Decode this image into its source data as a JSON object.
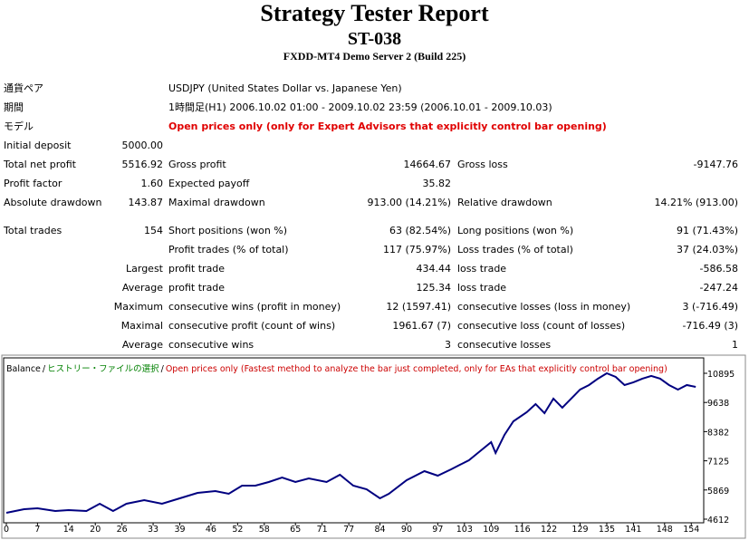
{
  "header": {
    "title": "Strategy Tester Report",
    "subtitle": "ST-038",
    "server": "FXDD-MT4 Demo Server 2 (Build 225)"
  },
  "info": [
    {
      "label": "通貨ペア",
      "value": "USDJPY (United States Dollar vs. Japanese Yen)"
    },
    {
      "label": "期間",
      "value": "1時間足(H1) 2006.10.02 01:00 - 2009.10.02 23:59 (2006.10.01 - 2009.10.03)"
    },
    {
      "label": "モデル",
      "value": "Open prices only (only for Expert Advisors that explicitly control bar opening)"
    }
  ],
  "stats": [
    [
      {
        "label": "Initial deposit",
        "value": "5000.00"
      },
      {
        "label": "Total net profit",
        "value": "5516.92",
        "label2": "Gross profit",
        "value2": "14664.67",
        "label3": "Gross loss",
        "value3": "-9147.76"
      },
      {
        "label": "Profit factor",
        "value": "1.60",
        "label2": "Expected payoff",
        "value2": "35.82"
      },
      {
        "label": "Absolute drawdown",
        "value": "143.87",
        "label2": "Maximal drawdown",
        "value2": "913.00 (14.21%)",
        "label3": "Relative drawdown",
        "value3": "14.21% (913.00)"
      }
    ],
    [
      {
        "label": "Total trades",
        "value": "154",
        "label2": "Short positions (won %)",
        "value2": "63 (82.54%)",
        "label3": "Long positions (won %)",
        "value3": "91 (71.43%)"
      },
      {
        "label2": "Profit trades (% of total)",
        "value2": "117 (75.97%)",
        "label3": "Loss trades (% of total)",
        "value3": "37 (24.03%)"
      },
      {
        "value": "Largest",
        "label2": "profit trade",
        "value2": "434.44",
        "label3": "loss trade",
        "value3": "-586.58"
      },
      {
        "value": "Average",
        "label2": "profit trade",
        "value2": "125.34",
        "label3": "loss trade",
        "value3": "-247.24"
      },
      {
        "value": "Maximum",
        "label2": "consecutive wins (profit in money)",
        "value2": "12 (1597.41)",
        "label3": "consecutive losses (loss in money)",
        "value3": "3 (-716.49)"
      },
      {
        "value": "Maximal",
        "label2": "consecutive profit (count of wins)",
        "value2": "1961.67 (7)",
        "label3": "consecutive loss (count of losses)",
        "value3": "-716.49 (3)"
      },
      {
        "value": "Average",
        "label2": "consecutive wins",
        "value2": "3",
        "label3": "consecutive losses",
        "value3": "1"
      }
    ]
  ],
  "chart_data": {
    "type": "line",
    "legend_separator": "/",
    "legend_notes": [
      {
        "text": "ヒストリー・ファイルの選択",
        "color": "#008000"
      },
      {
        "text": "Open prices only (Fastest method to analyze the bar just completed, only for EAs that explicitly control bar opening)",
        "color": "#cc0000"
      }
    ],
    "x": [
      0,
      4,
      7,
      11,
      14,
      18,
      21,
      24,
      27,
      31,
      35,
      39,
      43,
      47,
      50,
      53,
      56,
      59,
      62,
      65,
      68,
      72,
      75,
      78,
      81,
      84,
      86,
      90,
      94,
      97,
      100,
      104,
      106,
      109,
      110,
      112,
      114,
      117,
      119,
      121,
      123,
      125,
      127,
      129,
      131,
      133,
      135,
      137,
      139,
      141,
      143,
      145,
      147,
      149,
      151,
      153,
      155
    ],
    "series": [
      {
        "name": "Balance",
        "color": "#000080",
        "values": [
          4885,
          5041,
          5080,
          4963,
          5002,
          4963,
          5276,
          4963,
          5276,
          5432,
          5276,
          5510,
          5744,
          5822,
          5705,
          6056,
          6056,
          6212,
          6407,
          6212,
          6368,
          6212,
          6524,
          6056,
          5900,
          5510,
          5705,
          6290,
          6680,
          6485,
          6759,
          7149,
          7461,
          7930,
          7461,
          8242,
          8827,
          9218,
          9569,
          9179,
          9803,
          9413,
          9803,
          10193,
          10388,
          10662,
          10896,
          10740,
          10388,
          10505,
          10662,
          10779,
          10662,
          10388,
          10193,
          10388,
          10310
        ]
      }
    ],
    "xlim": [
      0,
      157
    ],
    "xticks": [
      0,
      7,
      14,
      20,
      26,
      33,
      39,
      46,
      52,
      58,
      65,
      71,
      77,
      84,
      90,
      97,
      103,
      109,
      116,
      122,
      129,
      135,
      141,
      148,
      154
    ],
    "ylim": [
      4495,
      11480
    ],
    "yticks": [
      4612,
      5869,
      7125,
      8382,
      9638,
      10895
    ]
  }
}
